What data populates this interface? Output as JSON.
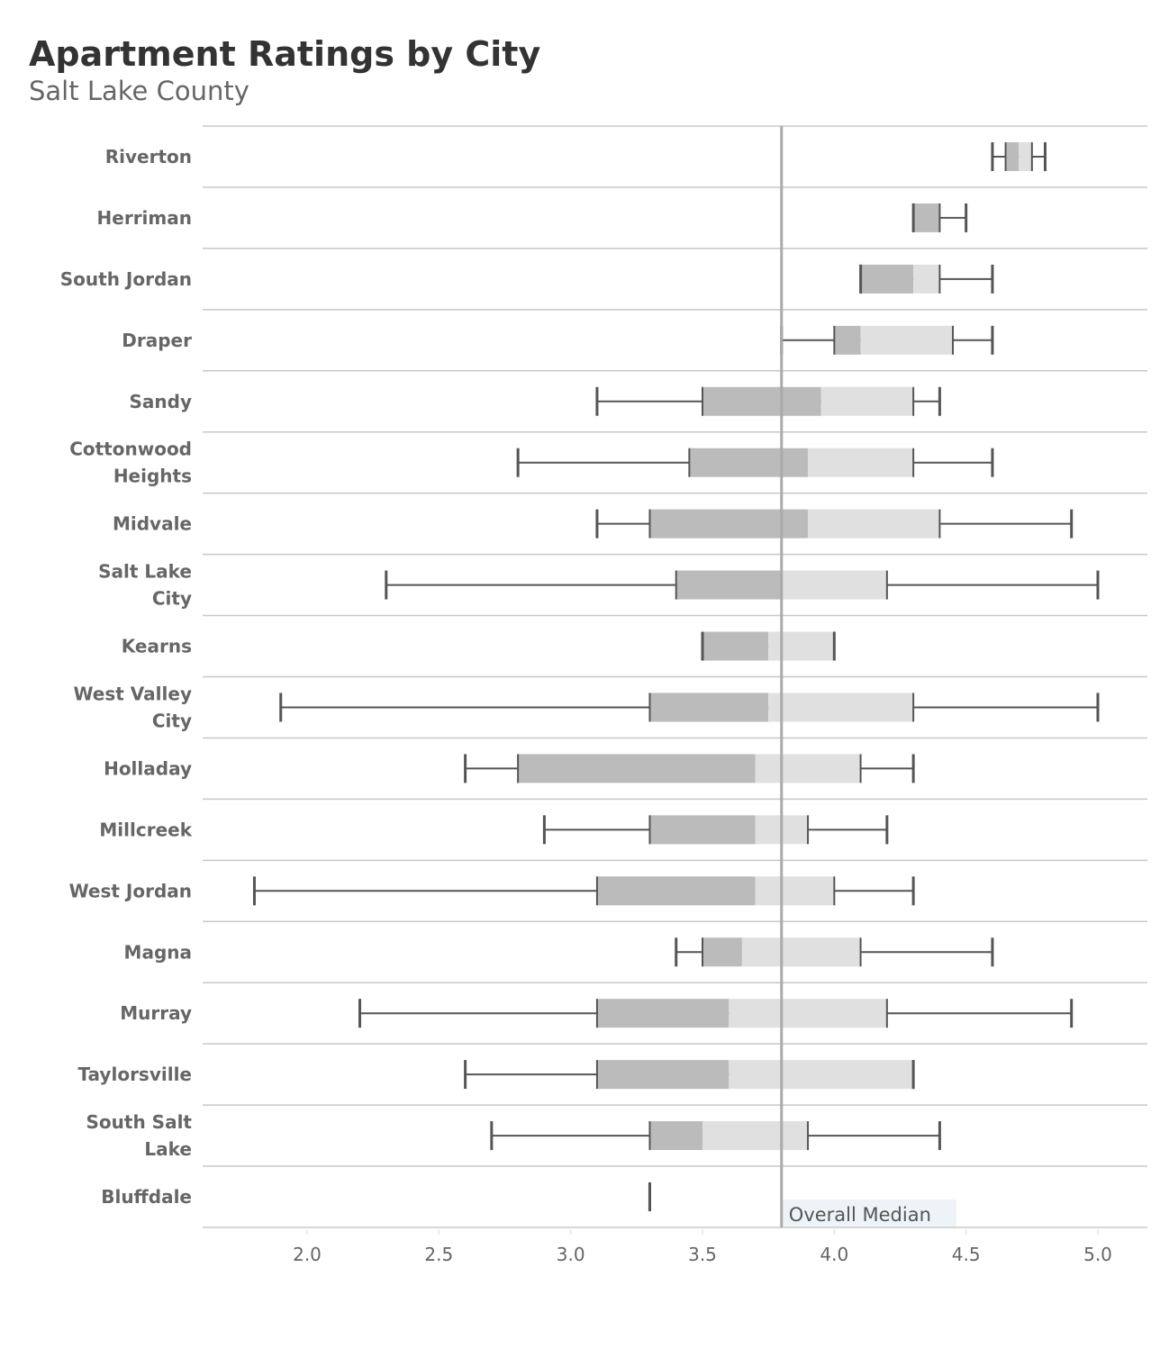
{
  "chart_data": {
    "type": "boxplot",
    "title": "Apartment Ratings by City",
    "subtitle": "Salt Lake County",
    "xlabel": "",
    "ylabel": "",
    "xlim": [
      1.6,
      5.19
    ],
    "xticks": [
      "2.0",
      "2.5",
      "3.0",
      "3.5",
      "4.0",
      "4.5",
      "5.0"
    ],
    "grid": "horizontal row separators",
    "colors": {
      "lower_box": "#bbbbbb",
      "upper_box": "#e0e0e0",
      "whisker": "#555555",
      "median_line": "#aaaaaa",
      "annotation_bg": "#edf3f7"
    },
    "reference_line": {
      "value": 3.8,
      "label": "Overall Median"
    },
    "categories": [
      "Riverton",
      "Herriman",
      "South Jordan",
      "Draper",
      "Sandy",
      "Cottonwood Heights",
      "Midvale",
      "Salt Lake City",
      "Kearns",
      "West Valley City",
      "Holladay",
      "Millcreek",
      "West Jordan",
      "Magna",
      "Murray",
      "Taylorsville",
      "South Salt Lake",
      "Bluffdale"
    ],
    "series": [
      {
        "min": 4.6,
        "q1": 4.65,
        "median": 4.7,
        "q3": 4.75,
        "max": 4.8
      },
      {
        "min": 4.3,
        "q1": 4.3,
        "median": 4.4,
        "q3": 4.4,
        "max": 4.5
      },
      {
        "min": 4.1,
        "q1": 4.1,
        "median": 4.3,
        "q3": 4.4,
        "max": 4.6
      },
      {
        "min": 3.8,
        "q1": 4.0,
        "median": 4.1,
        "q3": 4.45,
        "max": 4.6
      },
      {
        "min": 3.1,
        "q1": 3.5,
        "median": 3.95,
        "q3": 4.3,
        "max": 4.4
      },
      {
        "min": 2.8,
        "q1": 3.45,
        "median": 3.9,
        "q3": 4.3,
        "max": 4.6
      },
      {
        "min": 3.1,
        "q1": 3.3,
        "median": 3.9,
        "q3": 4.4,
        "max": 4.9
      },
      {
        "min": 2.3,
        "q1": 3.4,
        "median": 3.8,
        "q3": 4.2,
        "max": 5.0
      },
      {
        "min": 3.5,
        "q1": 3.5,
        "median": 3.75,
        "q3": 4.0,
        "max": 4.0
      },
      {
        "min": 1.9,
        "q1": 3.3,
        "median": 3.75,
        "q3": 4.3,
        "max": 5.0
      },
      {
        "min": 2.6,
        "q1": 2.8,
        "median": 3.7,
        "q3": 4.1,
        "max": 4.3
      },
      {
        "min": 2.9,
        "q1": 3.3,
        "median": 3.7,
        "q3": 3.9,
        "max": 4.2
      },
      {
        "min": 1.8,
        "q1": 3.1,
        "median": 3.7,
        "q3": 4.0,
        "max": 4.3
      },
      {
        "min": 3.4,
        "q1": 3.5,
        "median": 3.65,
        "q3": 4.1,
        "max": 4.6
      },
      {
        "min": 2.2,
        "q1": 3.1,
        "median": 3.6,
        "q3": 4.2,
        "max": 4.9
      },
      {
        "min": 2.6,
        "q1": 3.1,
        "median": 3.6,
        "q3": 4.3,
        "max": 4.3
      },
      {
        "min": 2.7,
        "q1": 3.3,
        "median": 3.5,
        "q3": 3.9,
        "max": 4.4
      },
      {
        "min": 3.3,
        "q1": 3.3,
        "median": 3.3,
        "q3": 3.3,
        "max": 3.3
      }
    ]
  }
}
